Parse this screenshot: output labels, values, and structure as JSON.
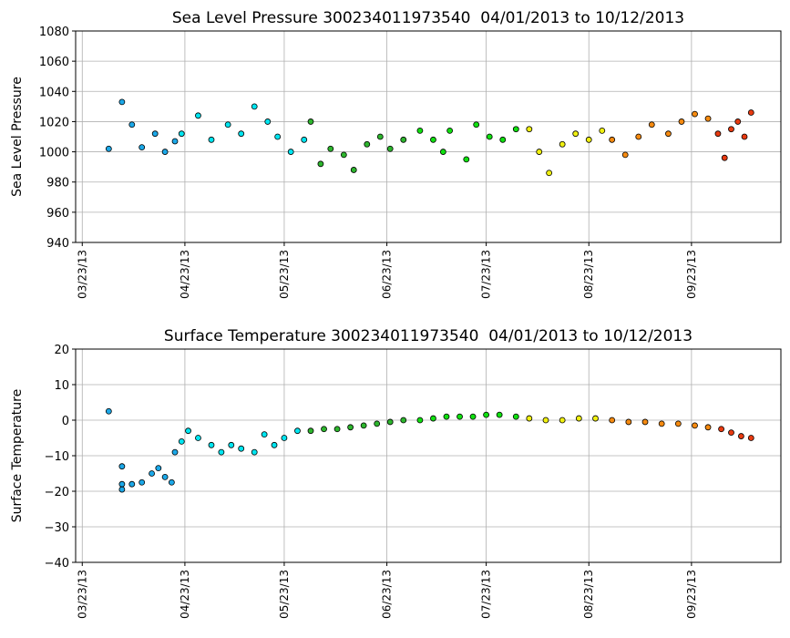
{
  "chart_data": [
    {
      "type": "scatter",
      "title": "Sea Level Pressure 300234011973540  04/01/2013 to 10/12/2013",
      "y_label": "Sea Level Pressure",
      "xlim": [
        "2013-03-21",
        "2013-10-20"
      ],
      "xticks": [
        {
          "value": "2013-03-23",
          "label": "03/23/13"
        },
        {
          "value": "2013-04-23",
          "label": "04/23/13"
        },
        {
          "value": "2013-05-23",
          "label": "05/23/13"
        },
        {
          "value": "2013-06-23",
          "label": "06/23/13"
        },
        {
          "value": "2013-07-23",
          "label": "07/23/13"
        },
        {
          "value": "2013-08-23",
          "label": "08/23/13"
        },
        {
          "value": "2013-09-23",
          "label": "09/23/13"
        }
      ],
      "ylim": [
        940,
        1080
      ],
      "yticks": [
        940,
        960,
        980,
        1000,
        1020,
        1040,
        1060,
        1080
      ],
      "grid": true,
      "series": [
        {
          "color": "#1ca8e8",
          "x": [
            "2013-03-31",
            "2013-04-04",
            "2013-04-07",
            "2013-04-10",
            "2013-04-14",
            "2013-04-17",
            "2013-04-20"
          ],
          "values": [
            1002,
            1033,
            1018,
            1003,
            1012,
            1000,
            1007
          ]
        },
        {
          "color": "#00e5f0",
          "x": [
            "2013-04-22",
            "2013-04-27",
            "2013-05-01",
            "2013-05-06",
            "2013-05-10",
            "2013-05-14",
            "2013-05-18",
            "2013-05-21",
            "2013-05-25",
            "2013-05-29"
          ],
          "values": [
            1012,
            1024,
            1008,
            1018,
            1012,
            1030,
            1020,
            1010,
            1000,
            1008
          ]
        },
        {
          "color": "#2db52d",
          "x": [
            "2013-05-31",
            "2013-06-03",
            "2013-06-06",
            "2013-06-10",
            "2013-06-13",
            "2013-06-17",
            "2013-06-21",
            "2013-06-24",
            "2013-06-28"
          ],
          "values": [
            1020,
            992,
            1002,
            998,
            988,
            1005,
            1010,
            1002,
            1008
          ]
        },
        {
          "color": "#10e010",
          "x": [
            "2013-07-03",
            "2013-07-07",
            "2013-07-10",
            "2013-07-12",
            "2013-07-17",
            "2013-07-20",
            "2013-07-24",
            "2013-07-28",
            "2013-08-01"
          ],
          "values": [
            1014,
            1008,
            1000,
            1014,
            995,
            1018,
            1010,
            1008,
            1015
          ]
        },
        {
          "color": "#f0f010",
          "x": [
            "2013-08-05",
            "2013-08-08",
            "2013-08-11",
            "2013-08-15",
            "2013-08-19",
            "2013-08-23",
            "2013-08-27"
          ],
          "values": [
            1015,
            1000,
            986,
            1005,
            1012,
            1008,
            1014
          ]
        },
        {
          "color": "#f58a10",
          "x": [
            "2013-08-30",
            "2013-09-03",
            "2013-09-07",
            "2013-09-11",
            "2013-09-16",
            "2013-09-20",
            "2013-09-24",
            "2013-09-28"
          ],
          "values": [
            1008,
            998,
            1010,
            1018,
            1012,
            1020,
            1025,
            1022
          ]
        },
        {
          "color": "#e83a10",
          "x": [
            "2013-10-01",
            "2013-10-03",
            "2013-10-05",
            "2013-10-07",
            "2013-10-09",
            "2013-10-11"
          ],
          "values": [
            1012,
            996,
            1015,
            1020,
            1010,
            1026
          ]
        }
      ]
    },
    {
      "type": "scatter",
      "title": "Surface Temperature 300234011973540  04/01/2013 to 10/12/2013",
      "y_label": "Surface Temperature",
      "xlim": [
        "2013-03-21",
        "2013-10-20"
      ],
      "xticks": [
        {
          "value": "2013-03-23",
          "label": "03/23/13"
        },
        {
          "value": "2013-04-23",
          "label": "04/23/13"
        },
        {
          "value": "2013-05-23",
          "label": "05/23/13"
        },
        {
          "value": "2013-06-23",
          "label": "06/23/13"
        },
        {
          "value": "2013-07-23",
          "label": "07/23/13"
        },
        {
          "value": "2013-08-23",
          "label": "08/23/13"
        },
        {
          "value": "2013-09-23",
          "label": "09/23/13"
        }
      ],
      "ylim": [
        -40,
        20
      ],
      "yticks": [
        {
          "value": -40,
          "label": "−40"
        },
        {
          "value": -30,
          "label": "−30"
        },
        {
          "value": -20,
          "label": "−20"
        },
        {
          "value": -10,
          "label": "−10"
        },
        0,
        10,
        20
      ],
      "grid": true,
      "series": [
        {
          "color": "#1ca8e8",
          "x": [
            "2013-03-31",
            "2013-04-04",
            "2013-04-04",
            "2013-04-04",
            "2013-04-07",
            "2013-04-10",
            "2013-04-13",
            "2013-04-15",
            "2013-04-17",
            "2013-04-19",
            "2013-04-20"
          ],
          "values": [
            2.5,
            -18,
            -19.5,
            -13,
            -18,
            -17.5,
            -15,
            -13.5,
            -16,
            -17.5,
            -9
          ]
        },
        {
          "color": "#00e5f0",
          "x": [
            "2013-04-22",
            "2013-04-24",
            "2013-04-27",
            "2013-05-01",
            "2013-05-04",
            "2013-05-07",
            "2013-05-10",
            "2013-05-14",
            "2013-05-17",
            "2013-05-20",
            "2013-05-23",
            "2013-05-27"
          ],
          "values": [
            -6,
            -3,
            -5,
            -7,
            -9,
            -7,
            -8,
            -9,
            -4,
            -7,
            -5,
            -3
          ]
        },
        {
          "color": "#2db52d",
          "x": [
            "2013-05-31",
            "2013-06-04",
            "2013-06-08",
            "2013-06-12",
            "2013-06-16",
            "2013-06-20",
            "2013-06-24",
            "2013-06-28"
          ],
          "values": [
            -3,
            -2.5,
            -2.5,
            -2,
            -1.5,
            -1,
            -0.5,
            0
          ]
        },
        {
          "color": "#10e010",
          "x": [
            "2013-07-03",
            "2013-07-07",
            "2013-07-11",
            "2013-07-15",
            "2013-07-19",
            "2013-07-23",
            "2013-07-27",
            "2013-08-01"
          ],
          "values": [
            0,
            0.5,
            1,
            1,
            1,
            1.5,
            1.5,
            1
          ]
        },
        {
          "color": "#f0f010",
          "x": [
            "2013-08-05",
            "2013-08-10",
            "2013-08-15",
            "2013-08-20",
            "2013-08-25"
          ],
          "values": [
            0.5,
            0,
            0,
            0.5,
            0.5
          ]
        },
        {
          "color": "#f58a10",
          "x": [
            "2013-08-30",
            "2013-09-04",
            "2013-09-09",
            "2013-09-14",
            "2013-09-19",
            "2013-09-24",
            "2013-09-28"
          ],
          "values": [
            0,
            -0.5,
            -0.5,
            -1,
            -1,
            -1.5,
            -2
          ]
        },
        {
          "color": "#e83a10",
          "x": [
            "2013-10-02",
            "2013-10-05",
            "2013-10-08",
            "2013-10-11"
          ],
          "values": [
            -2.5,
            -3.5,
            -4.5,
            -5
          ]
        }
      ]
    }
  ]
}
